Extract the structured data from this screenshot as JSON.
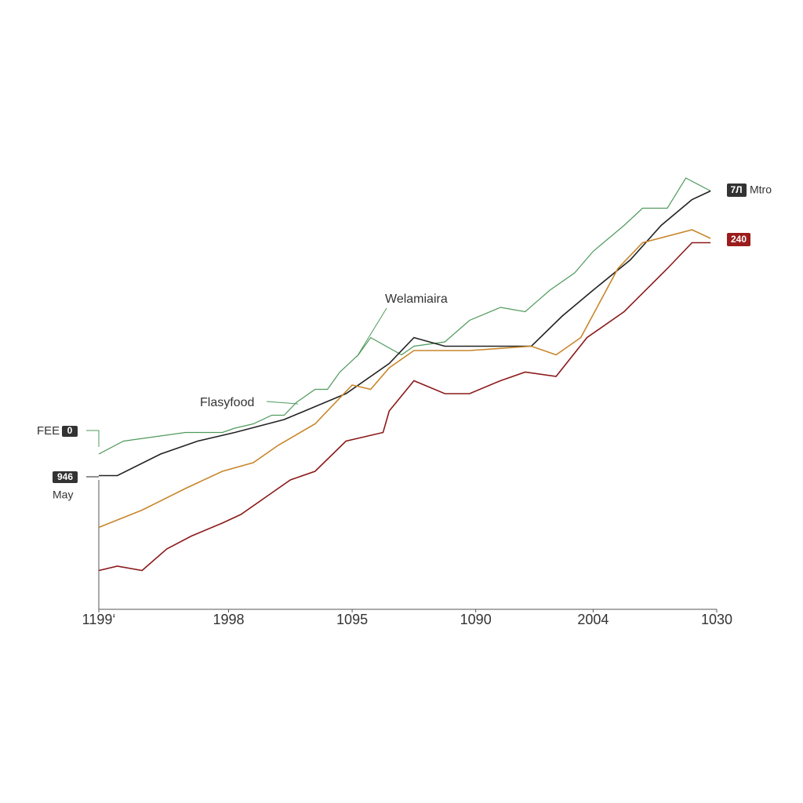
{
  "chart_data": {
    "type": "line",
    "xlim": [
      0,
      100
    ],
    "ylim": [
      0,
      100
    ],
    "xticks": [
      {
        "value": 0,
        "label": "1199‘"
      },
      {
        "value": 21,
        "label": "1998"
      },
      {
        "value": 41,
        "label": "1095"
      },
      {
        "value": 61,
        "label": "1090"
      },
      {
        "value": 80,
        "label": "2004"
      },
      {
        "value": 100,
        "label": "1030"
      }
    ],
    "annotations": [
      "Welamiaira",
      "Flasyfood",
      "FEE",
      "0",
      "946",
      "May",
      "7Л",
      "Mtro",
      "240"
    ],
    "series": [
      {
        "color": "#4f9a5c",
        "x": [
          0,
          4,
          9,
          14,
          20,
          22,
          25,
          28,
          30,
          32,
          35,
          37,
          39,
          42,
          44,
          49,
          51,
          56,
          60,
          65,
          69,
          73,
          77,
          80,
          85,
          88,
          92,
          95,
          99
        ],
        "values": [
          36,
          39,
          40,
          41,
          41,
          42,
          43,
          45,
          45,
          48,
          51,
          51,
          55,
          59,
          63,
          59,
          61,
          62,
          67,
          70,
          69,
          74,
          78,
          83,
          89,
          93,
          93,
          100,
          97
        ]
      },
      {
        "color": "#222222",
        "x": [
          0,
          3,
          10,
          16,
          22,
          30,
          35,
          40,
          47,
          51,
          56,
          60,
          70,
          75,
          80,
          86,
          91,
          96,
          99
        ],
        "values": [
          31,
          31,
          36,
          39,
          41,
          44,
          47,
          50,
          57,
          63,
          61,
          61,
          61,
          68,
          74,
          81,
          89,
          95,
          97
        ]
      },
      {
        "color": "#c8862a",
        "x": [
          0,
          7,
          14,
          20,
          25,
          29,
          35,
          39,
          41,
          44,
          47,
          51,
          60,
          70,
          74,
          78,
          84,
          88,
          96,
          99
        ],
        "values": [
          19,
          23,
          28,
          32,
          34,
          38,
          43,
          49,
          52,
          51,
          56,
          60,
          60,
          61,
          59,
          63,
          79,
          85,
          88,
          86
        ]
      },
      {
        "color": "#8b1a1a",
        "x": [
          0,
          3,
          7,
          11,
          15,
          20,
          23,
          27,
          31,
          35,
          40,
          46,
          47,
          51,
          56,
          60,
          65,
          69,
          74,
          79,
          85,
          92,
          96,
          99
        ],
        "values": [
          9,
          10,
          9,
          14,
          17,
          20,
          22,
          26,
          30,
          32,
          39,
          41,
          46,
          53,
          50,
          50,
          53,
          55,
          54,
          63,
          69,
          79,
          85,
          85
        ]
      }
    ]
  }
}
